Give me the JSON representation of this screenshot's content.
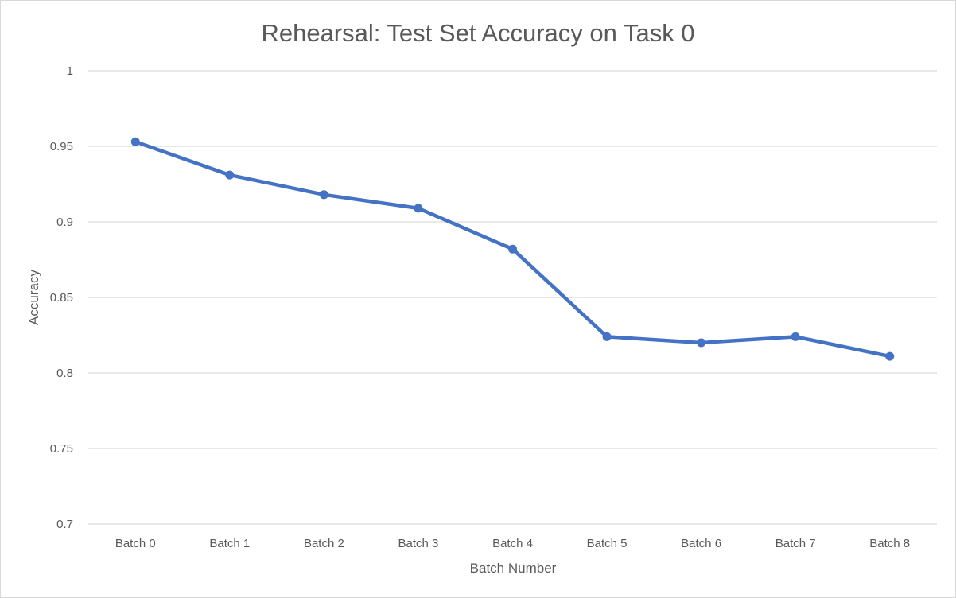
{
  "chart_data": {
    "type": "line",
    "title": "Rehearsal: Test Set Accuracy on Task 0",
    "xlabel": "Batch Number",
    "ylabel": "Accuracy",
    "categories": [
      "Batch 0",
      "Batch 1",
      "Batch 2",
      "Batch 3",
      "Batch 4",
      "Batch 5",
      "Batch 6",
      "Batch 7",
      "Batch 8"
    ],
    "series": [
      {
        "values": [
          0.953,
          0.931,
          0.918,
          0.909,
          0.882,
          0.824,
          0.82,
          0.824,
          0.811
        ],
        "color": "#4472c4"
      }
    ],
    "ylim": [
      0.7,
      1
    ],
    "yticks": [
      "0.7",
      "0.75",
      "0.8",
      "0.85",
      "0.9",
      "0.95",
      "1"
    ],
    "grid": true,
    "legend": "none"
  }
}
